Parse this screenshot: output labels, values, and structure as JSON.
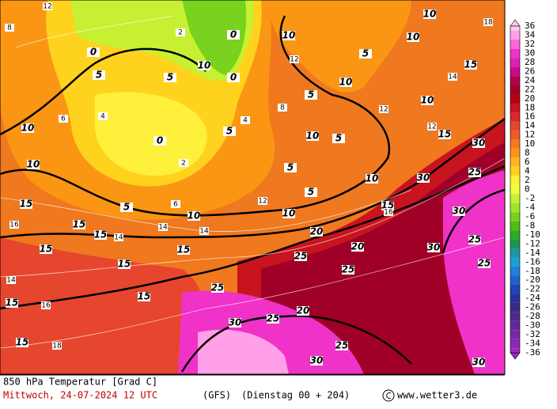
{
  "map": {
    "colorbar": {
      "labels": [
        36,
        34,
        32,
        30,
        28,
        26,
        24,
        22,
        20,
        18,
        16,
        14,
        12,
        10,
        8,
        6,
        4,
        2,
        0,
        -2,
        -4,
        -6,
        -8,
        -10,
        -12,
        -14,
        -16,
        -18,
        -20,
        -22,
        -24,
        -26,
        -28,
        -30,
        -32,
        -34,
        -36
      ],
      "colors": [
        "#ffc8f0",
        "#ffa0e8",
        "#ff64d8",
        "#f032c8",
        "#e01eb4",
        "#c80a8c",
        "#b40050",
        "#a00028",
        "#b40014",
        "#c8141e",
        "#dc2828",
        "#e6462d",
        "#f05a28",
        "#f5781e",
        "#fa9614",
        "#ffb41e",
        "#ffd21e",
        "#fff03c",
        "#f0ff3c",
        "#c8f032",
        "#a0e628",
        "#78d21e",
        "#50be14",
        "#32aa28",
        "#1e9650",
        "#1e96a0",
        "#1ea0d2",
        "#1e82dc",
        "#1e64c8",
        "#1e46b4",
        "#2832a0",
        "#3c288c",
        "#50288c",
        "#64289b",
        "#7828aa",
        "#8c28b4",
        "#a028be"
      ]
    },
    "contour_labels": [
      "10",
      "10",
      "5",
      "5",
      "0",
      "5",
      "10",
      "10",
      "10",
      "10",
      "10",
      "10",
      "5",
      "5",
      "5",
      "5",
      "10",
      "10",
      "15",
      "15",
      "15",
      "15",
      "15",
      "15",
      "15",
      "15",
      "15",
      "15",
      "20",
      "20",
      "25",
      "25",
      "25",
      "25",
      "20",
      "25",
      "30",
      "30",
      "30",
      "30",
      "25",
      "30",
      "30",
      "30",
      "25",
      "25",
      "15",
      "15",
      "0",
      "0",
      "10",
      "0",
      "5",
      "5",
      "10"
    ],
    "isotherm_labels": [
      "12",
      "8",
      "2",
      "4",
      "16",
      "14",
      "12",
      "18",
      "14",
      "2",
      "6",
      "4",
      "8",
      "12",
      "14",
      "16",
      "14",
      "12",
      "18",
      "6",
      "16",
      "12",
      "14"
    ],
    "footer": {
      "field": "850 hPa Temperatur [Grad C]",
      "date": "Mittwoch, 24-07-2024  12 UTC",
      "model": "(GFS)",
      "run": "(Dienstag 00 + 204)",
      "site": "www.wetter3.de"
    }
  }
}
